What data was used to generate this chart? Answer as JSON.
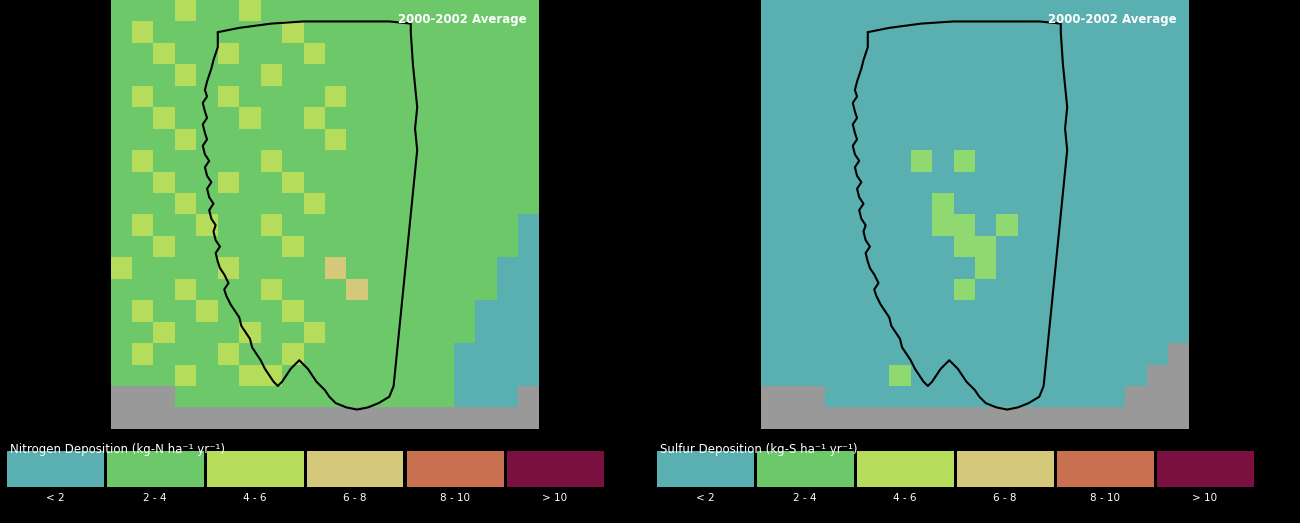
{
  "title_left": "2000-2002 Average",
  "title_right": "2000-2002 Average",
  "label_left": "Nitrogen Deposition (kg-N ha⁻¹ yr⁻¹)",
  "label_right": "Sulfur Deposition (kg-S ha⁻¹ yr⁻¹)",
  "legend_categories": [
    "< 2",
    "2 - 4",
    "4 - 6",
    "6 - 8",
    "8 - 10",
    "> 10"
  ],
  "legend_colors": [
    "#5aafb0",
    "#6dc86a",
    "#b5dc5a",
    "#d4c87a",
    "#c87050",
    "#7a1040"
  ],
  "background_color": "#000000",
  "gray_color": "#999999",
  "figsize": [
    13.0,
    5.23
  ],
  "dpi": 100,
  "c_teal": "#5aafb0",
  "c_mgreen": "#6dc86a",
  "c_lgreen": "#b5dc5a",
  "c_tan": "#d4c87a",
  "c_terra": "#c87050",
  "c_maroon": "#7a1040"
}
